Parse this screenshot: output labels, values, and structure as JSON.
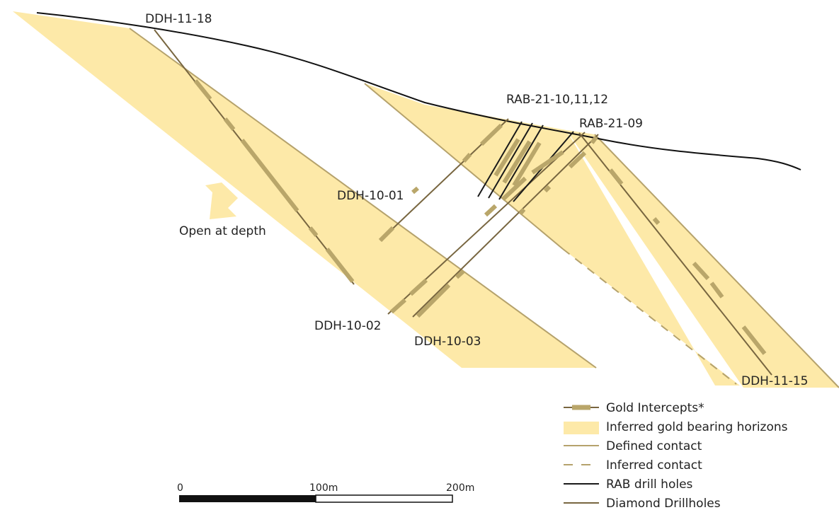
{
  "colors": {
    "horizon_fill": "#fde9a8",
    "contact": "#b5a26c",
    "intercept": "#b9a66a",
    "diamond": "#786640",
    "rab": "#1a1a1a",
    "topography": "#111111"
  },
  "labels": {
    "ddh_11_18": "DDH-11-18",
    "rab_21_10_11_12": "RAB-21-10,11,12",
    "rab_21_09": "RAB-21-09",
    "ddh_10_01": "DDH-10-01",
    "open_at_depth": "Open at depth",
    "ddh_10_02": "DDH-10-02",
    "ddh_10_03": "DDH-10-03",
    "ddh_11_15": "DDH-11-15"
  },
  "legend": {
    "gold_intercepts": "Gold Intercepts*",
    "inferred_horizons": "Inferred gold bearing horizons",
    "defined_contact": "Defined contact",
    "inferred_contact": "Inferred contact",
    "rab_holes": "RAB drill holes",
    "diamond_holes": "Diamond Drillholes"
  },
  "scale_bar": {
    "tick_0": "0",
    "tick_100": "100m",
    "tick_200": "200m"
  }
}
